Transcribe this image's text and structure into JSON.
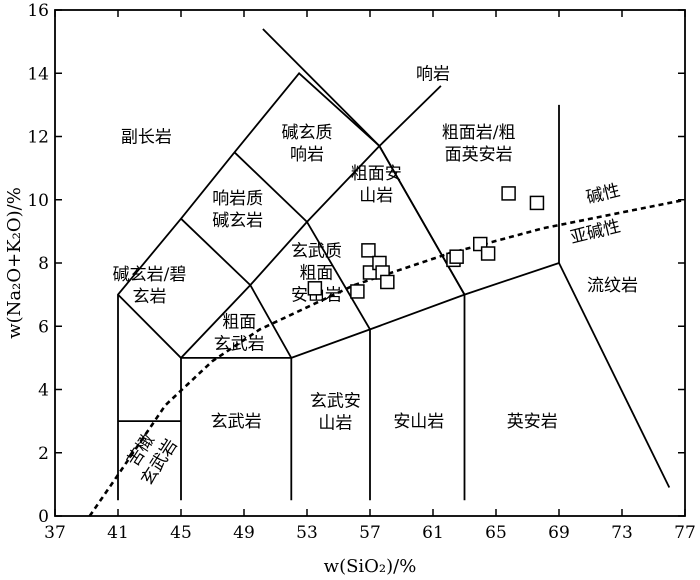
{
  "chart_data": {
    "type": "scatter",
    "title": "",
    "xlabel": "w(SiO₂)/%",
    "ylabel": "w(Na₂O+K₂O)/%",
    "xlim": [
      37,
      77
    ],
    "ylim": [
      0,
      16
    ],
    "x_ticks": [
      "37",
      "41",
      "45",
      "49",
      "53",
      "57",
      "61",
      "65",
      "69",
      "73",
      "77"
    ],
    "y_ticks": [
      "0",
      "2",
      "4",
      "6",
      "8",
      "10",
      "12",
      "14",
      "16"
    ],
    "grid": false,
    "fields": [
      {
        "lines": [
          "苦橄",
          "玄武岩"
        ],
        "x": 43.0,
        "y": 1.9,
        "rotate": -57
      },
      {
        "lines": [
          "玄武岩"
        ],
        "x": 48.5,
        "y": 3.0
      },
      {
        "lines": [
          "玄武安",
          "山岩"
        ],
        "x": 54.8,
        "y": 3.3
      },
      {
        "lines": [
          "安山岩"
        ],
        "x": 60.1,
        "y": 3.0
      },
      {
        "lines": [
          "英安岩"
        ],
        "x": 67.3,
        "y": 3.0
      },
      {
        "lines": [
          "流纹岩"
        ],
        "x": 72.4,
        "y": 7.3
      },
      {
        "lines": [
          "粗面",
          "玄武岩"
        ],
        "x": 48.7,
        "y": 5.8
      },
      {
        "lines": [
          "玄武质",
          "粗面",
          "安山岩"
        ],
        "x": 53.6,
        "y": 7.7
      },
      {
        "lines": [
          "碱玄岩/碧",
          "玄岩"
        ],
        "x": 43.0,
        "y": 7.3
      },
      {
        "lines": [
          "响岩质",
          "碱玄岩"
        ],
        "x": 48.6,
        "y": 9.7
      },
      {
        "lines": [
          "粗面安",
          "山岩"
        ],
        "x": 57.4,
        "y": 10.5
      },
      {
        "lines": [
          "粗面岩/粗",
          "面英安岩"
        ],
        "x": 63.9,
        "y": 11.8
      },
      {
        "lines": [
          "碱玄质",
          "响岩"
        ],
        "x": 53.0,
        "y": 11.8
      },
      {
        "lines": [
          "副长岩"
        ],
        "x": 42.8,
        "y": 12.0
      },
      {
        "lines": [
          "响岩"
        ],
        "x": 61.0,
        "y": 14.0
      }
    ],
    "divider_labels": [
      {
        "text": "碱性",
        "x": 71.8,
        "y": 10.2,
        "rotate": -14
      },
      {
        "text": "亚碱性",
        "x": 71.3,
        "y": 9.0,
        "rotate": -14
      }
    ],
    "boundaries": [
      [
        [
          41,
          0.5
        ],
        [
          41,
          3
        ],
        [
          41,
          7
        ],
        [
          45,
          9.4
        ],
        [
          48.4,
          11.5
        ],
        [
          52.5,
          14
        ],
        [
          57.6,
          11.7
        ],
        [
          63,
          7
        ],
        [
          69,
          8
        ]
      ],
      [
        [
          45,
          9.4
        ],
        [
          49.4,
          7.3
        ],
        [
          53,
          9.3
        ],
        [
          57.6,
          11.7
        ]
      ],
      [
        [
          49.4,
          7.3
        ],
        [
          52,
          5
        ],
        [
          57,
          5.9
        ],
        [
          63,
          7
        ]
      ],
      [
        [
          41,
          7
        ],
        [
          45,
          5
        ],
        [
          49.4,
          7.3
        ]
      ],
      [
        [
          45,
          0.5
        ],
        [
          45,
          3
        ],
        [
          45,
          5
        ],
        [
          52,
          5
        ]
      ],
      [
        [
          41,
          3
        ],
        [
          45,
          3
        ]
      ],
      [
        [
          48.4,
          11.5
        ],
        [
          53,
          9.3
        ]
      ],
      [
        [
          52,
          0.5
        ],
        [
          52,
          5
        ]
      ],
      [
        [
          57,
          0.5
        ],
        [
          57,
          5.9
        ],
        [
          53,
          9.3
        ]
      ],
      [
        [
          63,
          0.5
        ],
        [
          63,
          7
        ],
        [
          57.6,
          11.7
        ]
      ],
      [
        [
          69,
          8
        ],
        [
          69,
          13
        ]
      ],
      [
        [
          69,
          8
        ],
        [
          76,
          0.9
        ]
      ],
      [
        [
          57.6,
          11.7
        ],
        [
          61.5,
          13.6
        ]
      ],
      [
        [
          57.6,
          11.7
        ],
        [
          50.2,
          15.4
        ]
      ]
    ],
    "alkaline_divide": [
      [
        39.2,
        0
      ],
      [
        41,
        1.3
      ],
      [
        44,
        3.5
      ],
      [
        47,
        4.9
      ],
      [
        50,
        5.9
      ],
      [
        53,
        6.6
      ],
      [
        56,
        7.3
      ],
      [
        59,
        7.8
      ],
      [
        62,
        8.3
      ],
      [
        65,
        8.7
      ],
      [
        68,
        9.1
      ],
      [
        70,
        9.3
      ],
      [
        73,
        9.6
      ],
      [
        77,
        10.0
      ]
    ],
    "samples": [
      {
        "x": 53.5,
        "y": 7.2
      },
      {
        "x": 56.2,
        "y": 7.1
      },
      {
        "x": 56.9,
        "y": 8.4
      },
      {
        "x": 57.0,
        "y": 7.7
      },
      {
        "x": 57.6,
        "y": 8.0
      },
      {
        "x": 57.8,
        "y": 7.7
      },
      {
        "x": 58.1,
        "y": 7.4
      },
      {
        "x": 62.3,
        "y": 8.1
      },
      {
        "x": 62.5,
        "y": 8.2
      },
      {
        "x": 64.0,
        "y": 8.6
      },
      {
        "x": 64.5,
        "y": 8.3
      },
      {
        "x": 65.8,
        "y": 10.2
      },
      {
        "x": 67.6,
        "y": 9.9
      }
    ]
  }
}
